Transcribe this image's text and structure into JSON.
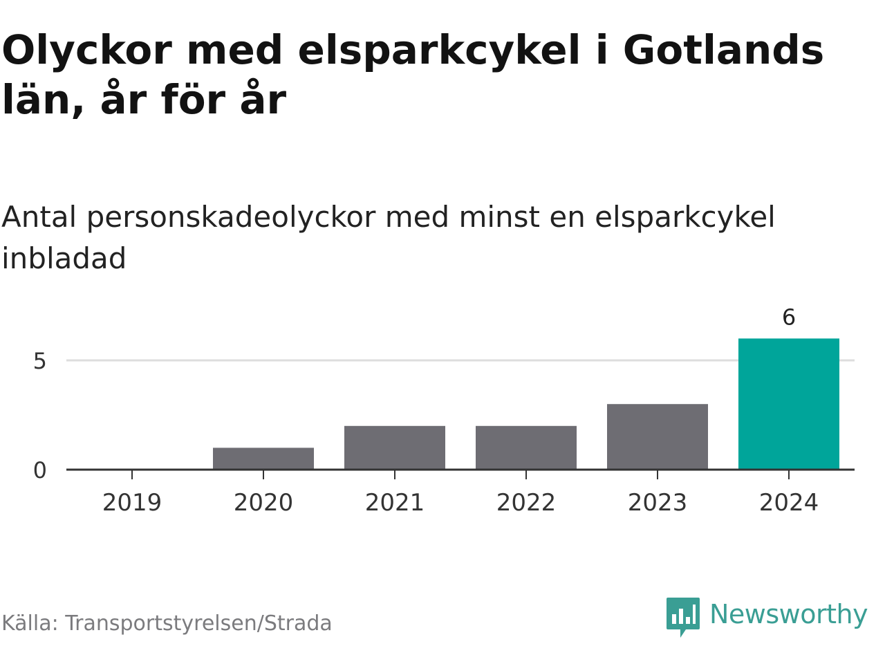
{
  "title": "Olyckor med elsparkcykel i Gotlands län, år för år",
  "subtitle": "Antal personskadeolyckor med minst en elsparkcykel inbladad",
  "source": "Källa: Transportstyrelsen/Strada",
  "brand": {
    "name": "Newsworthy",
    "color": "#3a9e94",
    "icon": "newsworthy-logo-icon"
  },
  "chart_data": {
    "type": "bar",
    "categories": [
      "2019",
      "2020",
      "2021",
      "2022",
      "2023",
      "2024"
    ],
    "values": [
      0,
      1,
      2,
      2,
      3,
      6
    ],
    "ylim": [
      0,
      6
    ],
    "yticks": [
      0,
      5
    ],
    "grid": true,
    "legend": "none",
    "data_labels": [
      {
        "category": "2024",
        "label": "6"
      }
    ],
    "colors": {
      "default": "#6e6d73",
      "highlight": "#00a59a",
      "highlight_category": "2024",
      "grid": "#dddddd",
      "axis": "#333333"
    }
  }
}
